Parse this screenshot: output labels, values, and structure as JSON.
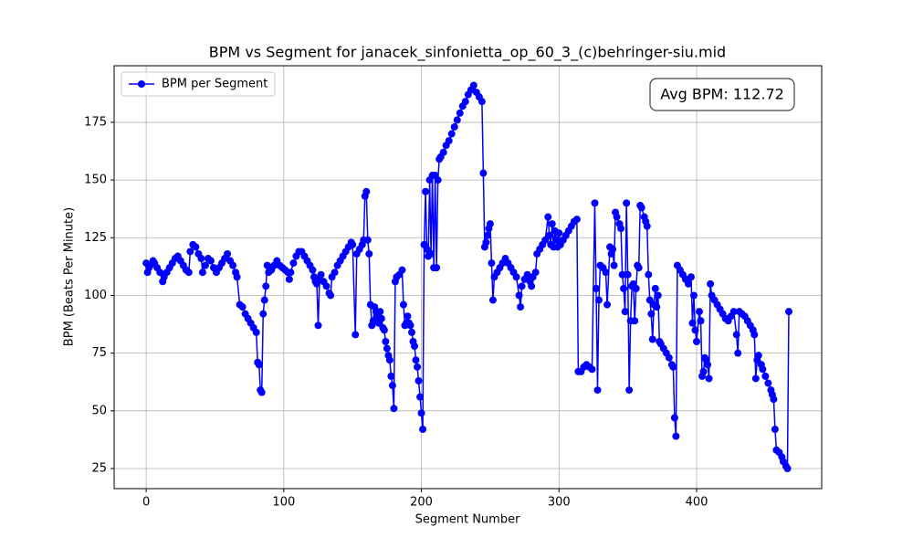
{
  "chart_data": {
    "type": "line",
    "title": "BPM vs Segment for janacek_sinfonietta_op_60_3_(c)behringer-siu.mid",
    "x_label": "Segment Number",
    "y_label": "BPM (Beats Per Minute)",
    "annotation": "Avg BPM: 112.72",
    "xlim": [
      -23.3,
      490.9
    ],
    "ylim": [
      16.3,
      199.5
    ],
    "xticks": [
      0,
      100,
      200,
      300,
      400
    ],
    "yticks": [
      25,
      50,
      75,
      100,
      125,
      150,
      175
    ],
    "grid": true,
    "legend": "upper left",
    "series": [
      {
        "name": "BPM per Segment",
        "color": "#0000ff",
        "x": [
          0,
          1,
          2,
          3,
          5,
          6,
          8,
          10,
          12,
          13,
          15,
          17,
          19,
          21,
          23,
          25,
          27,
          29,
          31,
          32,
          34,
          36,
          38,
          40,
          41,
          43,
          45,
          47,
          49,
          51,
          53,
          55,
          57,
          59,
          61,
          63,
          65,
          66,
          68,
          70,
          72,
          74,
          76,
          78,
          80,
          81,
          82,
          83,
          84,
          85,
          86,
          87,
          88,
          89,
          91,
          93,
          95,
          97,
          99,
          101,
          103,
          104,
          105,
          107,
          109,
          111,
          113,
          115,
          117,
          119,
          121,
          122,
          123,
          124,
          125,
          126,
          127,
          129,
          131,
          133,
          134,
          135,
          137,
          139,
          141,
          143,
          145,
          147,
          149,
          150,
          152,
          153,
          155,
          157,
          158,
          159,
          160,
          161,
          162,
          163,
          164,
          165,
          166,
          167,
          168,
          169,
          170,
          171,
          172,
          173,
          174,
          175,
          176,
          177,
          178,
          179,
          180,
          181,
          182,
          184,
          186,
          187,
          188,
          189,
          190,
          191,
          192,
          193,
          194,
          195,
          196,
          197,
          198,
          199,
          200,
          201,
          202,
          203,
          204,
          205,
          206,
          207,
          208,
          209,
          210,
          211,
          212,
          213,
          214,
          216,
          218,
          220,
          222,
          224,
          226,
          228,
          230,
          232,
          234,
          236,
          238,
          240,
          242,
          244,
          245,
          246,
          247,
          248,
          249,
          250,
          251,
          252,
          253,
          255,
          257,
          259,
          261,
          263,
          265,
          267,
          269,
          271,
          272,
          273,
          275,
          277,
          279,
          280,
          281,
          283,
          284,
          286,
          288,
          290,
          292,
          293,
          294,
          295,
          296,
          297,
          298,
          299,
          300,
          301,
          303,
          305,
          307,
          309,
          311,
          313,
          314,
          316,
          318,
          320,
          322,
          324,
          326,
          327,
          328,
          329,
          330,
          332,
          334,
          335,
          337,
          338,
          339,
          340,
          341,
          342,
          344,
          345,
          346,
          347,
          348,
          349,
          350,
          351,
          352,
          353,
          354,
          355,
          356,
          357,
          358,
          359,
          360,
          362,
          363,
          364,
          365,
          366,
          367,
          368,
          369,
          370,
          371,
          372,
          373,
          374,
          376,
          378,
          380,
          382,
          383,
          384,
          385,
          386,
          388,
          390,
          392,
          394,
          396,
          397,
          398,
          399,
          400,
          402,
          403,
          404,
          405,
          406,
          407,
          408,
          409,
          410,
          411,
          413,
          415,
          417,
          419,
          421,
          423,
          425,
          427,
          429,
          430,
          431,
          433,
          435,
          437,
          439,
          441,
          442,
          443,
          444,
          445,
          447,
          448,
          450,
          452,
          454,
          455,
          456,
          457,
          458,
          460,
          462,
          463,
          465,
          466,
          467
        ],
        "values": [
          114,
          110,
          112,
          113,
          115,
          114,
          112,
          110,
          106,
          108,
          110,
          112,
          114,
          116,
          117,
          115,
          113,
          111,
          110,
          119,
          122,
          121,
          118,
          116,
          110,
          113,
          116,
          115,
          112,
          110,
          112,
          114,
          116,
          118,
          115,
          113,
          110,
          108,
          96,
          95,
          92,
          90,
          88,
          86,
          84,
          71,
          70,
          59,
          58,
          92,
          98,
          104,
          113,
          110,
          111,
          113,
          115,
          113,
          112,
          111,
          110,
          107,
          110,
          114,
          117,
          119,
          119,
          117,
          115,
          113,
          111,
          108,
          106,
          105,
          87,
          107,
          109,
          106,
          104,
          101,
          100,
          108,
          110,
          113,
          115,
          117,
          119,
          121,
          123,
          122,
          83,
          118,
          120,
          122,
          124,
          143,
          145,
          124,
          118,
          96,
          87,
          89,
          95,
          93,
          91,
          88,
          93,
          90,
          86,
          85,
          80,
          77,
          74,
          72,
          65,
          61,
          51,
          106,
          108,
          109,
          111,
          96,
          87,
          88,
          91,
          88,
          87,
          84,
          80,
          78,
          72,
          69,
          63,
          56,
          49,
          42,
          122,
          145,
          120,
          117,
          150,
          118,
          152,
          112,
          152,
          112,
          150,
          159,
          160,
          162,
          165,
          167,
          170,
          173,
          176,
          179,
          182,
          184,
          187,
          189,
          191,
          188,
          186,
          184,
          153,
          121,
          123,
          126,
          129,
          131,
          114,
          98,
          108,
          110,
          112,
          114,
          116,
          114,
          112,
          110,
          108,
          100,
          95,
          104,
          107,
          109,
          106,
          104,
          108,
          110,
          118,
          120,
          122,
          124,
          134,
          126,
          122,
          131,
          121,
          128,
          124,
          121,
          127,
          122,
          124,
          126,
          128,
          130,
          132,
          133,
          67,
          67,
          69,
          70,
          69,
          68,
          140,
          103,
          59,
          98,
          113,
          112,
          110,
          96,
          121,
          118,
          120,
          113,
          136,
          134,
          131,
          129,
          109,
          103,
          93,
          140,
          109,
          59,
          89,
          104,
          105,
          89,
          103,
          113,
          112,
          139,
          138,
          134,
          132,
          130,
          109,
          98,
          92,
          81,
          96,
          103,
          95,
          100,
          80,
          79,
          77,
          75,
          73,
          70,
          69,
          47,
          39,
          113,
          111,
          109,
          107,
          105,
          108,
          88,
          100,
          85,
          80,
          93,
          89,
          65,
          67,
          73,
          72,
          70,
          64,
          105,
          100,
          98,
          96,
          94,
          92,
          90,
          89,
          91,
          93,
          83,
          75,
          93,
          92,
          91,
          89,
          87,
          85,
          83,
          64,
          72,
          74,
          70,
          68,
          65,
          62,
          59,
          57,
          55,
          42,
          33,
          32,
          30,
          28,
          26,
          25,
          93
        ]
      }
    ]
  }
}
